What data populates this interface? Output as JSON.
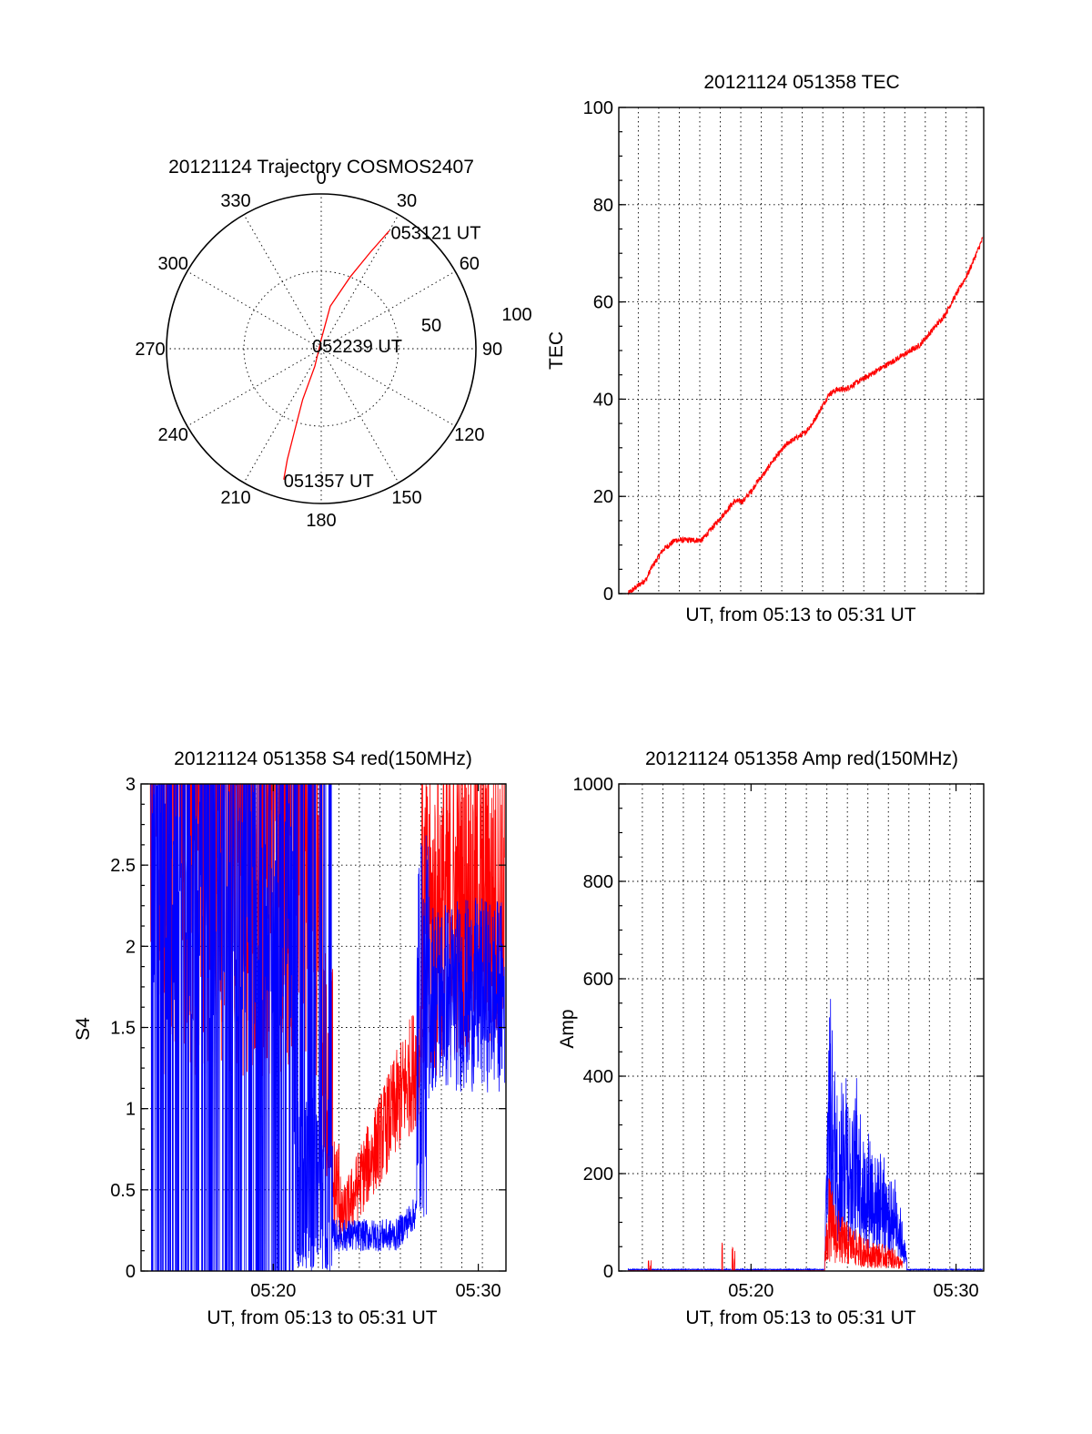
{
  "colors": {
    "red": "#ff0000",
    "blue": "#0000ff",
    "axis": "#000000"
  },
  "chart_data": [
    {
      "type": "polar",
      "title": "20121124 Trajectory COSMOS2407",
      "angle_labels": [
        "0",
        "30",
        "60",
        "90",
        "120",
        "150",
        "180",
        "210",
        "240",
        "270",
        "300",
        "330"
      ],
      "radial_labels": [
        "50",
        "100"
      ],
      "rmax": 100,
      "grid": true,
      "annotations": [
        {
          "text": "053121 UT",
          "az": 30,
          "r": 90
        },
        {
          "text": "052239 UT",
          "az": 10,
          "r": 0
        },
        {
          "text": "051357 UT",
          "az": 196,
          "r": 88
        }
      ],
      "series": [
        {
          "color": "#ff0000",
          "points": [
            [
              30,
              88
            ],
            [
              27,
              70
            ],
            [
              22,
              50
            ],
            [
              12,
              28
            ],
            [
              0,
              6
            ],
            [
              200,
              12
            ],
            [
              200,
              35
            ],
            [
              198,
              55
            ],
            [
              197,
              75
            ],
            [
              196,
              88
            ]
          ]
        }
      ]
    },
    {
      "type": "line",
      "title": "20121124 051358 TEC",
      "xlabel": "UT, from 05:13 to 05:31 UT",
      "ylabel": "TEC",
      "xlim": [
        13.55,
        31.35
      ],
      "ylim": [
        0,
        100
      ],
      "yticks": [
        "0",
        "20",
        "40",
        "60",
        "80",
        "100"
      ],
      "xticks": [],
      "grid": true,
      "grid_x": [
        14.5,
        15.5,
        16.5,
        17.5,
        18.5,
        19.5,
        20.5,
        21.5,
        22.5,
        23.5,
        24.5,
        25.5,
        26.5,
        27.5,
        28.5,
        29.5,
        30.5
      ],
      "series": [
        {
          "color": "#ff0000",
          "noise": 0.6,
          "x": [
            14.0,
            14.3,
            14.6,
            14.9,
            15.1,
            15.4,
            15.7,
            16.0,
            16.3,
            16.8,
            17.2,
            17.6,
            18.0,
            18.4,
            18.8,
            19.2,
            19.6,
            20.0,
            20.3,
            20.7,
            21.0,
            21.4,
            21.8,
            22.2,
            22.6,
            23.0,
            23.4,
            23.8,
            24.2,
            24.6,
            25.0,
            25.4,
            25.8,
            26.2,
            26.6,
            27.0,
            27.4,
            27.8,
            28.2,
            28.6,
            29.0,
            29.4,
            29.8,
            30.2,
            30.6,
            31.0,
            31.3
          ],
          "y": [
            0,
            1,
            2,
            3,
            5,
            7,
            9,
            10,
            11,
            11,
            11,
            11,
            13,
            15,
            17,
            19,
            19,
            21,
            23,
            25,
            27,
            29,
            31,
            32,
            33,
            35,
            38,
            41,
            42,
            42,
            43,
            44,
            45,
            46,
            47,
            48,
            49,
            50,
            51,
            53,
            55,
            57,
            60,
            63,
            66,
            70,
            73
          ]
        }
      ]
    },
    {
      "type": "line",
      "title": "20121124 051358 S4 red(150MHz)",
      "xlabel": "UT, from 05:13 to 05:31 UT",
      "ylabel": "S4",
      "xlim": [
        13.55,
        31.35
      ],
      "ylim": [
        0,
        3
      ],
      "yticks": [
        "0",
        "0.5",
        "1",
        "1.5",
        "2",
        "2.5",
        "3"
      ],
      "xticks": [
        {
          "value": 20,
          "label": "05:20"
        },
        {
          "value": 30,
          "label": "05:30"
        }
      ],
      "grid": true,
      "grid_x": [
        19.2,
        20.2,
        21.2,
        22.2,
        23.2,
        24.2,
        25.2,
        26.2,
        27.2,
        28.2,
        29.2,
        30.2
      ],
      "series": [
        {
          "name": "",
          "color": "#ff0000",
          "style": "red_s4",
          "x": [],
          "y": []
        },
        {
          "name": "",
          "color": "#0000ff",
          "style": "blue_s4",
          "x": [],
          "y": []
        }
      ]
    },
    {
      "type": "line",
      "title": "20121124 051358 Amp red(150MHz)",
      "xlabel": "UT, from 05:13 to 05:31 UT",
      "ylabel": "Amp",
      "xlim": [
        13.55,
        31.35
      ],
      "ylim": [
        0,
        1000
      ],
      "yticks": [
        "0",
        "200",
        "400",
        "600",
        "800",
        "1000"
      ],
      "xticks": [
        {
          "value": 20,
          "label": "05:20"
        },
        {
          "value": 30,
          "label": "05:30"
        }
      ],
      "grid": true,
      "grid_x": [
        14.7,
        15.7,
        16.7,
        17.7,
        18.7,
        19.7,
        20.7,
        21.7,
        22.7,
        23.7,
        24.7,
        25.7,
        26.7,
        27.7,
        28.7,
        29.7,
        30.7
      ],
      "series": [
        {
          "name": "",
          "color": "#0000ff",
          "style": "blue_amp",
          "env_x": [
            23.6,
            23.8,
            24.0,
            24.3,
            24.6,
            24.9,
            25.2,
            25.5,
            25.8,
            26.1,
            26.4,
            26.7,
            27.0,
            27.3,
            27.6
          ],
          "env_y": [
            50,
            620,
            480,
            330,
            480,
            300,
            420,
            260,
            300,
            230,
            260,
            180,
            200,
            130,
            30
          ]
        },
        {
          "name": "",
          "color": "#ff0000",
          "style": "red_amp",
          "spikes": [
            [
              15.0,
              30
            ],
            [
              15.1,
              25
            ],
            [
              18.6,
              90
            ],
            [
              19.1,
              60
            ],
            [
              19.2,
              55
            ]
          ],
          "env_x": [
            23.6,
            23.8,
            24.1,
            24.5,
            25.0,
            25.5,
            26.0,
            26.5,
            27.0,
            27.4
          ],
          "env_y": [
            40,
            200,
            140,
            110,
            90,
            70,
            60,
            55,
            45,
            20
          ]
        }
      ]
    }
  ]
}
